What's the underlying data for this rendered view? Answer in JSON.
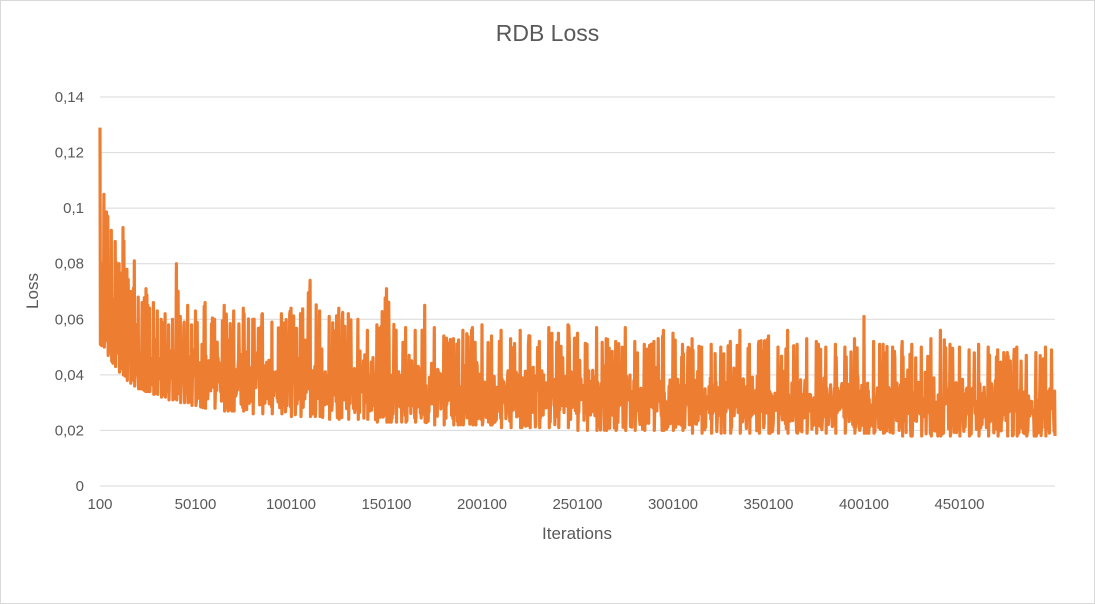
{
  "chart_data": {
    "type": "line",
    "title": "RDB Loss",
    "xlabel": "Iterations",
    "ylabel": "Loss",
    "x_range": [
      100,
      500100
    ],
    "ylim": [
      0,
      0.14
    ],
    "y_ticks": [
      0,
      0.02,
      0.04,
      0.06,
      0.08,
      0.1,
      0.12,
      0.14
    ],
    "y_tick_labels": [
      "0",
      "0,02",
      "0,04",
      "0,06",
      "0,08",
      "0,1",
      "0,12",
      "0,14"
    ],
    "x_ticks": [
      100,
      50100,
      100100,
      150100,
      200100,
      250100,
      300100,
      350100,
      400100,
      450100
    ],
    "x_tick_labels": [
      "100",
      "50100",
      "100100",
      "150100",
      "200100",
      "250100",
      "300100",
      "350100",
      "400100",
      "450100"
    ],
    "grid": true,
    "legend": "none",
    "series": [
      {
        "color": "#ed7d31",
        "x": [
          100,
          2100,
          4100,
          6100,
          8100,
          10100,
          12100,
          14100,
          16100,
          18100,
          20100,
          22100,
          24100,
          26100,
          28100,
          30100,
          32100,
          34100,
          36100,
          38100,
          40100,
          42100,
          44100,
          46100,
          48100,
          50100,
          55100,
          60100,
          65100,
          70100,
          75100,
          80100,
          85100,
          90100,
          95100,
          100100,
          105100,
          110100,
          115100,
          120100,
          125100,
          130100,
          135100,
          140100,
          145100,
          150100,
          155100,
          160100,
          165100,
          170100,
          175100,
          180100,
          185100,
          190100,
          195100,
          200100,
          205100,
          210100,
          215100,
          220100,
          225100,
          230100,
          235100,
          240100,
          245100,
          250100,
          255100,
          260100,
          265100,
          270100,
          275100,
          280100,
          285100,
          290100,
          295100,
          300100,
          305100,
          310100,
          315100,
          320100,
          325100,
          330100,
          335100,
          340100,
          345100,
          350100,
          355100,
          360100,
          365100,
          370100,
          375100,
          380100,
          385100,
          390100,
          395100,
          400100,
          405100,
          410100,
          415100,
          420100,
          425100,
          430100,
          435100,
          440100,
          445100,
          450100,
          455100,
          460100,
          465100,
          470100,
          475100,
          480100,
          485100,
          490100,
          495100,
          500100
        ],
        "lower": [
          0.051,
          0.05,
          0.047,
          0.045,
          0.043,
          0.041,
          0.04,
          0.038,
          0.037,
          0.036,
          0.035,
          0.035,
          0.034,
          0.034,
          0.033,
          0.033,
          0.032,
          0.032,
          0.031,
          0.031,
          0.031,
          0.03,
          0.03,
          0.03,
          0.029,
          0.029,
          0.028,
          0.028,
          0.027,
          0.027,
          0.027,
          0.026,
          0.026,
          0.026,
          0.026,
          0.025,
          0.025,
          0.025,
          0.025,
          0.024,
          0.024,
          0.024,
          0.024,
          0.024,
          0.023,
          0.023,
          0.023,
          0.023,
          0.023,
          0.023,
          0.022,
          0.022,
          0.022,
          0.022,
          0.022,
          0.022,
          0.022,
          0.021,
          0.021,
          0.021,
          0.021,
          0.021,
          0.021,
          0.021,
          0.021,
          0.02,
          0.02,
          0.02,
          0.02,
          0.02,
          0.02,
          0.02,
          0.02,
          0.02,
          0.02,
          0.02,
          0.02,
          0.019,
          0.019,
          0.019,
          0.019,
          0.019,
          0.019,
          0.019,
          0.019,
          0.019,
          0.019,
          0.019,
          0.019,
          0.019,
          0.019,
          0.019,
          0.019,
          0.019,
          0.019,
          0.019,
          0.019,
          0.019,
          0.019,
          0.018,
          0.018,
          0.018,
          0.018,
          0.018,
          0.018,
          0.018,
          0.018,
          0.018,
          0.018,
          0.018,
          0.018,
          0.018,
          0.018,
          0.018,
          0.018,
          0.018
        ],
        "upper": [
          0.129,
          0.105,
          0.097,
          0.092,
          0.088,
          0.08,
          0.093,
          0.078,
          0.07,
          0.081,
          0.068,
          0.066,
          0.071,
          0.064,
          0.066,
          0.063,
          0.06,
          0.062,
          0.058,
          0.06,
          0.08,
          0.061,
          0.059,
          0.065,
          0.058,
          0.063,
          0.066,
          0.06,
          0.065,
          0.063,
          0.064,
          0.06,
          0.062,
          0.059,
          0.062,
          0.064,
          0.062,
          0.074,
          0.063,
          0.061,
          0.064,
          0.062,
          0.06,
          0.056,
          0.058,
          0.071,
          0.056,
          0.057,
          0.056,
          0.065,
          0.057,
          0.054,
          0.053,
          0.056,
          0.057,
          0.058,
          0.054,
          0.056,
          0.053,
          0.056,
          0.054,
          0.052,
          0.057,
          0.055,
          0.058,
          0.055,
          0.051,
          0.057,
          0.053,
          0.052,
          0.057,
          0.052,
          0.051,
          0.052,
          0.056,
          0.055,
          0.051,
          0.053,
          0.05,
          0.051,
          0.05,
          0.052,
          0.056,
          0.051,
          0.052,
          0.054,
          0.05,
          0.056,
          0.051,
          0.053,
          0.052,
          0.05,
          0.051,
          0.05,
          0.053,
          0.061,
          0.052,
          0.051,
          0.05,
          0.052,
          0.051,
          0.05,
          0.053,
          0.056,
          0.051,
          0.05,
          0.049,
          0.051,
          0.05,
          0.049,
          0.048,
          0.05,
          0.047,
          0.048,
          0.05,
          0.05
        ],
        "mean": [
          0.068,
          0.065,
          0.06,
          0.056,
          0.053,
          0.05,
          0.049,
          0.048,
          0.047,
          0.046,
          0.045,
          0.045,
          0.044,
          0.044,
          0.043,
          0.043,
          0.042,
          0.042,
          0.042,
          0.041,
          0.041,
          0.041,
          0.041,
          0.04,
          0.04,
          0.04,
          0.04,
          0.039,
          0.039,
          0.039,
          0.038,
          0.038,
          0.038,
          0.038,
          0.037,
          0.037,
          0.037,
          0.037,
          0.037,
          0.036,
          0.036,
          0.036,
          0.036,
          0.035,
          0.035,
          0.035,
          0.035,
          0.035,
          0.034,
          0.034,
          0.034,
          0.034,
          0.034,
          0.034,
          0.033,
          0.033,
          0.033,
          0.033,
          0.033,
          0.033,
          0.033,
          0.032,
          0.032,
          0.032,
          0.032,
          0.032,
          0.032,
          0.032,
          0.032,
          0.031,
          0.031,
          0.031,
          0.031,
          0.031,
          0.031,
          0.031,
          0.031,
          0.031,
          0.031,
          0.03,
          0.03,
          0.03,
          0.03,
          0.03,
          0.03,
          0.03,
          0.03,
          0.03,
          0.03,
          0.03,
          0.03,
          0.03,
          0.03,
          0.03,
          0.029,
          0.029,
          0.029,
          0.029,
          0.029,
          0.029,
          0.029,
          0.029,
          0.029,
          0.029,
          0.029,
          0.029,
          0.029,
          0.029,
          0.029,
          0.029,
          0.029,
          0.029,
          0.028,
          0.028,
          0.028,
          0.028
        ]
      }
    ]
  }
}
